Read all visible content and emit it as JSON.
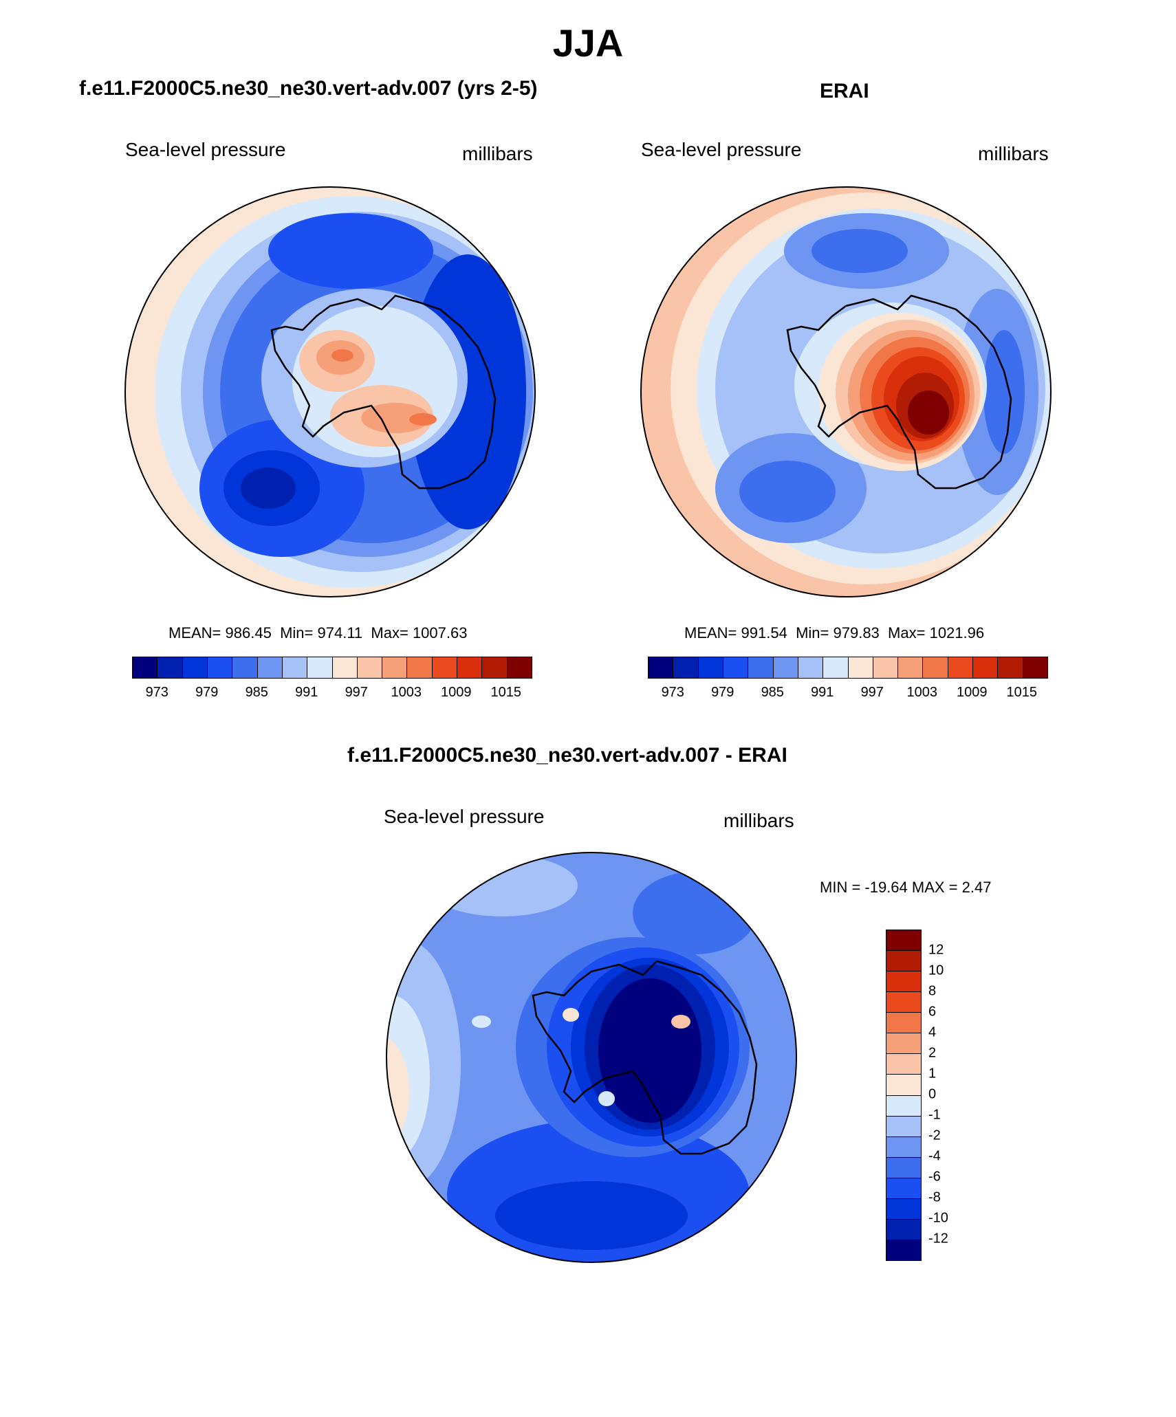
{
  "figure": {
    "title": "JJA",
    "stats_labels": {
      "mean": "MEAN=",
      "min": "Min=",
      "max": "Max="
    }
  },
  "panels": {
    "model": {
      "title": "f.e11.F2000C5.ne30_ne30.vert-adv.007 (yrs 2-5)",
      "variable": "Sea-level pressure",
      "units": "millibars",
      "mean": "986.45",
      "min": "974.11",
      "max": "1007.63"
    },
    "obs": {
      "title": "ERAI",
      "variable": "Sea-level pressure",
      "units": "millibars",
      "mean": "991.54",
      "min": "979.83",
      "max": "1021.96"
    },
    "diff": {
      "title": "f.e11.F2000C5.ne30_ne30.vert-adv.007 - ERAI",
      "variable": "Sea-level pressure",
      "units": "millibars",
      "minmax_text": "MIN = -19.64 MAX =   2.47"
    }
  },
  "colorbar_abs": {
    "colors": [
      "#00007f",
      "#0020b0",
      "#0035d9",
      "#1c4ff2",
      "#3d6eee",
      "#6e95f1",
      "#a5c1f7",
      "#d8e9fb",
      "#fbe6d6",
      "#f9c4a8",
      "#f6a07a",
      "#f27748",
      "#ea4a1d",
      "#d92f0b",
      "#b01d04",
      "#7f0000"
    ],
    "tick_labels": [
      "973",
      "979",
      "985",
      "991",
      "997",
      "1003",
      "1009",
      "1015"
    ]
  },
  "colorbar_diff": {
    "colors": [
      "#7f0000",
      "#b01d04",
      "#d92f0b",
      "#ea4a1d",
      "#f27748",
      "#f6a07a",
      "#f9c4a8",
      "#fbe6d6",
      "#d8e9fb",
      "#a5c1f7",
      "#6e95f1",
      "#3d6eee",
      "#1c4ff2",
      "#0035d9",
      "#0020b0",
      "#00007f"
    ],
    "tick_labels": [
      "12",
      "10",
      "8",
      "6",
      "4",
      "2",
      "1",
      "0",
      "-1",
      "-2",
      "-4",
      "-6",
      "-8",
      "-10",
      "-12"
    ]
  },
  "map_colors": {
    "c_deep_blue": "#00007f",
    "c_dark_blue": "#0020b0",
    "c_blue": "#0035d9",
    "c_mid_blue": "#1c4ff2",
    "c_blue2": "#3d6eee",
    "c_light_blue": "#6e95f1",
    "c_pale_blue": "#a5c1f7",
    "c_paler_blue": "#d8e9fb",
    "c_cream": "#fbe6d6",
    "c_peach": "#f9c4a8",
    "c_salmon": "#f6a07a",
    "c_orange": "#f27748",
    "c_red_orange": "#ea4a1d",
    "c_red": "#d92f0b",
    "c_dark_red": "#b01d04",
    "c_maroon": "#7f0000"
  }
}
